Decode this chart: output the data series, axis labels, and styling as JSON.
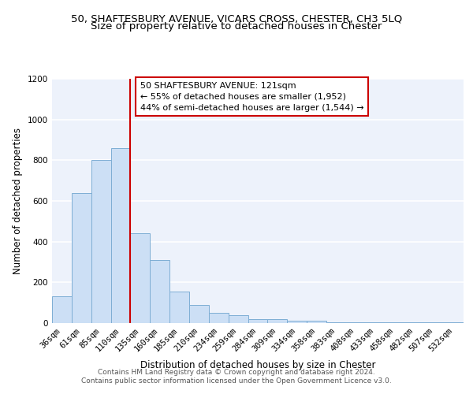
{
  "title_line1": "50, SHAFTESBURY AVENUE, VICARS CROSS, CHESTER, CH3 5LQ",
  "title_line2": "Size of property relative to detached houses in Chester",
  "xlabel": "Distribution of detached houses by size in Chester",
  "ylabel": "Number of detached properties",
  "bar_color": "#ccdff5",
  "bar_edge_color": "#7eaed4",
  "categories": [
    "36sqm",
    "61sqm",
    "85sqm",
    "110sqm",
    "135sqm",
    "160sqm",
    "185sqm",
    "210sqm",
    "234sqm",
    "259sqm",
    "284sqm",
    "309sqm",
    "334sqm",
    "358sqm",
    "383sqm",
    "408sqm",
    "433sqm",
    "458sqm",
    "482sqm",
    "507sqm",
    "532sqm"
  ],
  "values": [
    130,
    640,
    800,
    860,
    440,
    310,
    155,
    90,
    50,
    40,
    20,
    20,
    10,
    10,
    5,
    5,
    3,
    3,
    2,
    2,
    2
  ],
  "ylim": [
    0,
    1200
  ],
  "yticks": [
    0,
    200,
    400,
    600,
    800,
    1000,
    1200
  ],
  "vline_color": "#cc0000",
  "annotation_title": "50 SHAFTESBURY AVENUE: 121sqm",
  "annotation_line2": "← 55% of detached houses are smaller (1,952)",
  "annotation_line3": "44% of semi-detached houses are larger (1,544) →",
  "annotation_box_color": "#cc0000",
  "footer_line1": "Contains HM Land Registry data © Crown copyright and database right 2024.",
  "footer_line2": "Contains public sector information licensed under the Open Government Licence v3.0.",
  "background_color": "#edf2fb",
  "grid_color": "#ffffff",
  "title_fontsize": 9.5,
  "subtitle_fontsize": 9.5,
  "axis_label_fontsize": 8.5,
  "tick_fontsize": 7.5,
  "annotation_fontsize": 8,
  "footer_fontsize": 6.5
}
